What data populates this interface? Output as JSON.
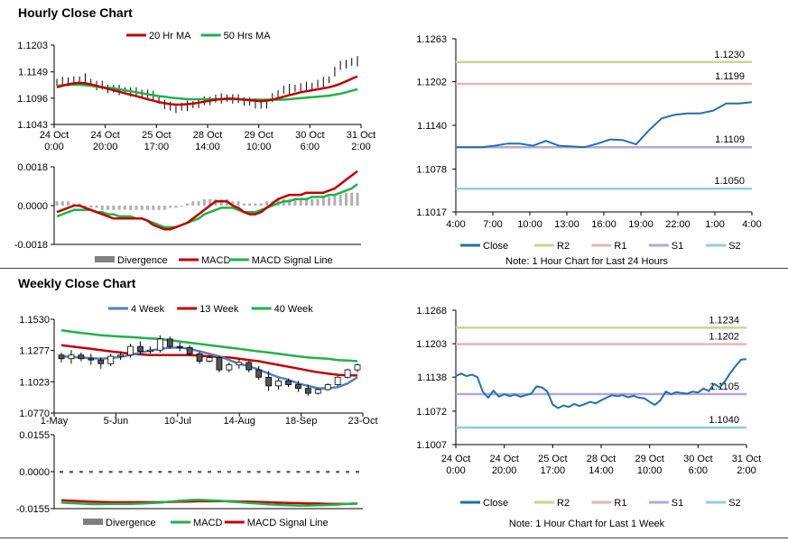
{
  "sections": {
    "hourly_title": "Hourly Close Chart",
    "weekly_title": "Weekly Close Chart"
  },
  "colors": {
    "ma20": "#c00000",
    "ma50": "#22b14c",
    "divergence": "#808080",
    "macd_red": "#c00000",
    "signal_green": "#22b14c",
    "close": "#1f6fb2",
    "r2": "#c3d69b",
    "r1": "#e6b4b4",
    "s1": "#b4a7d6",
    "s2": "#92cddc",
    "week4": "#4f81bd",
    "week13": "#c00000",
    "week40": "#22b14c"
  },
  "chart_data": [
    {
      "id": "hourly_price",
      "type": "line",
      "title": "Hourly Close Chart",
      "legend": [
        "20 Hr MA",
        "50 Hrs MA"
      ],
      "yticks": [
        "1.1203",
        "1.1149",
        "1.1096",
        "1.1043"
      ],
      "ylim": [
        1.1043,
        1.1203
      ],
      "xticks": [
        [
          "24 Oct",
          "0:00"
        ],
        [
          "24 Oct",
          "20:00"
        ],
        [
          "25 Oct",
          "17:00"
        ],
        [
          "28 Oct",
          "14:00"
        ],
        [
          "29 Oct",
          "10:00"
        ],
        [
          "30 Oct",
          "6:00"
        ],
        [
          "31 Oct",
          "2:00"
        ]
      ],
      "price": [
        1.1128,
        1.113,
        1.1127,
        1.1133,
        1.1131,
        1.1135,
        1.1128,
        1.1122,
        1.112,
        1.1116,
        1.1114,
        1.1112,
        1.1111,
        1.1109,
        1.1107,
        1.1106,
        1.1104,
        1.11,
        1.1092,
        1.1084,
        1.1078,
        1.1076,
        1.1078,
        1.108,
        1.1083,
        1.1086,
        1.1089,
        1.1092,
        1.1094,
        1.1095,
        1.1096,
        1.1095,
        1.1093,
        1.1091,
        1.1088,
        1.1085,
        1.1082,
        1.1085,
        1.1095,
        1.1105,
        1.1112,
        1.1114,
        1.1116,
        1.1117,
        1.1118,
        1.112,
        1.1124,
        1.1128,
        1.1133,
        1.115,
        1.116,
        1.1166,
        1.1168,
        1.117
      ],
      "ma20": [
        1.1118,
        1.1121,
        1.1124,
        1.1126,
        1.1127,
        1.1126,
        1.1124,
        1.1121,
        1.1118,
        1.1115,
        1.1112,
        1.1109,
        1.1106,
        1.1103,
        1.11,
        1.1097,
        1.1094,
        1.1091,
        1.1088,
        1.1086,
        1.1084,
        1.1083,
        1.1083,
        1.1084,
        1.1085,
        1.1087,
        1.1089,
        1.1091,
        1.1093,
        1.1094,
        1.1095,
        1.1095,
        1.1094,
        1.1093,
        1.1092,
        1.1091,
        1.109,
        1.1091,
        1.1093,
        1.1096,
        1.1099,
        1.1102,
        1.1105,
        1.1108,
        1.111,
        1.1112,
        1.1114,
        1.1116,
        1.1118,
        1.1121,
        1.1125,
        1.113,
        1.1135,
        1.114
      ],
      "ma50": [
        1.1121,
        1.1122,
        1.1123,
        1.1123,
        1.1123,
        1.1122,
        1.1121,
        1.1119,
        1.1118,
        1.1117,
        1.1116,
        1.1114,
        1.1112,
        1.111,
        1.1108,
        1.1106,
        1.1104,
        1.1102,
        1.11,
        1.1099,
        1.1097,
        1.1096,
        1.1095,
        1.1094,
        1.1094,
        1.1094,
        1.1094,
        1.1094,
        1.1094,
        1.1094,
        1.1094,
        1.1094,
        1.1094,
        1.1093,
        1.1093,
        1.1093,
        1.1093,
        1.1093,
        1.1093,
        1.1093,
        1.1093,
        1.1094,
        1.1095,
        1.1096,
        1.1097,
        1.1098,
        1.1099,
        1.11,
        1.1101,
        1.1103,
        1.1105,
        1.1108,
        1.1111,
        1.1114
      ]
    },
    {
      "id": "hourly_macd",
      "type": "line",
      "legend": [
        "Divergence",
        "MACD",
        "MACD Signal Line"
      ],
      "yticks": [
        "0.0018",
        "0.0000",
        "-0.0018"
      ],
      "ylim": [
        -0.0018,
        0.0018
      ],
      "divergence": [
        0.0002,
        0.0002,
        0.0002,
        0.0001,
        0.0001,
        0.0,
        -0.0001,
        -0.0001,
        -0.0002,
        -0.0002,
        -0.0002,
        -0.0002,
        -0.0002,
        -0.0002,
        -0.0002,
        -0.0002,
        -0.0002,
        -0.0002,
        -0.0002,
        -0.0002,
        -0.0001,
        -0.0001,
        0.0,
        0.0001,
        0.0002,
        0.0002,
        0.0003,
        0.0003,
        0.0003,
        0.0003,
        0.0003,
        0.0002,
        0.0002,
        0.0001,
        0.0001,
        0.0001,
        0.0001,
        0.0002,
        0.0002,
        0.0003,
        0.0003,
        0.0003,
        0.0003,
        0.0003,
        0.0003,
        0.0003,
        0.0003,
        0.0004,
        0.0004,
        0.0005,
        0.0005,
        0.0006,
        0.0006,
        0.0006
      ],
      "macd": [
        -0.0003,
        -0.0002,
        -0.0001,
        0.0,
        0.0,
        -0.0001,
        -0.0002,
        -0.0003,
        -0.0004,
        -0.0005,
        -0.0006,
        -0.0006,
        -0.0006,
        -0.0006,
        -0.0006,
        -0.0006,
        -0.0007,
        -0.0009,
        -0.001,
        -0.0011,
        -0.0011,
        -0.001,
        -0.0009,
        -0.0008,
        -0.0006,
        -0.0004,
        -0.0002,
        0.0,
        0.0002,
        0.0002,
        0.0002,
        0.0,
        -0.0001,
        -0.0003,
        -0.0004,
        -0.0004,
        -0.0003,
        -0.0001,
        0.0001,
        0.0003,
        0.0004,
        0.0005,
        0.0005,
        0.0005,
        0.0006,
        0.0006,
        0.0006,
        0.0006,
        0.0007,
        0.0008,
        0.001,
        0.0012,
        0.0014,
        0.0016
      ],
      "signal": [
        -0.0005,
        -0.0004,
        -0.0003,
        -0.0002,
        -0.0002,
        -0.0002,
        -0.0002,
        -0.0003,
        -0.0003,
        -0.0004,
        -0.0004,
        -0.0005,
        -0.0005,
        -0.0005,
        -0.0006,
        -0.0006,
        -0.0007,
        -0.0008,
        -0.0009,
        -0.001,
        -0.001,
        -0.001,
        -0.0009,
        -0.0008,
        -0.0007,
        -0.0006,
        -0.0004,
        -0.0003,
        -0.0002,
        -0.0001,
        -0.0001,
        -0.0001,
        -0.0002,
        -0.0003,
        -0.0003,
        -0.0003,
        -0.0002,
        -0.0001,
        0.0,
        0.0001,
        0.0002,
        0.0002,
        0.0003,
        0.0003,
        0.0003,
        0.0004,
        0.0004,
        0.0004,
        0.0005,
        0.0005,
        0.0006,
        0.0007,
        0.0008,
        0.001
      ]
    },
    {
      "id": "hourly_levels",
      "type": "line",
      "yticks": [
        "1.1263",
        "1.1202",
        "1.1140",
        "1.1078",
        "1.1017"
      ],
      "ylim": [
        1.1017,
        1.1263
      ],
      "xticks": [
        "4:00",
        "7:00",
        "10:00",
        "13:00",
        "16:00",
        "19:00",
        "22:00",
        "1:00",
        "4:00"
      ],
      "close": [
        1.1109,
        1.1109,
        1.1109,
        1.1111,
        1.1114,
        1.1114,
        1.1111,
        1.1118,
        1.1111,
        1.111,
        1.1109,
        1.1114,
        1.112,
        1.1119,
        1.1113,
        1.1133,
        1.115,
        1.1155,
        1.1157,
        1.1157,
        1.1161,
        1.1171,
        1.1171,
        1.1173
      ],
      "levels": {
        "R2": 1.123,
        "R1": 1.1199,
        "S1": 1.1109,
        "S2": 1.105
      },
      "level_labels": {
        "R2": "1.1230",
        "R1": "1.1199",
        "S1": "1.1109",
        "S2": "1.1050"
      },
      "legend": [
        "Close",
        "R2",
        "R1",
        "S1",
        "S2"
      ],
      "note": "Note: 1 Hour Chart for Last 24 Hours"
    },
    {
      "id": "weekly_price",
      "type": "line",
      "title": "Weekly Close Chart",
      "legend": [
        "4 Week",
        "13 Week",
        "40 Week"
      ],
      "yticks": [
        "1.1530",
        "1.1277",
        "1.1023",
        "1.0770"
      ],
      "ylim": [
        1.077,
        1.153
      ],
      "xticks": [
        "1-May",
        "5-Jun",
        "10-Jul",
        "14-Aug",
        "18-Sep",
        "23-Oct"
      ],
      "candles": [
        [
          1.124,
          1.126,
          1.118,
          1.121
        ],
        [
          1.121,
          1.128,
          1.117,
          1.124
        ],
        [
          1.124,
          1.126,
          1.119,
          1.121
        ],
        [
          1.121,
          1.125,
          1.116,
          1.12
        ],
        [
          1.12,
          1.122,
          1.113,
          1.117
        ],
        [
          1.117,
          1.125,
          1.115,
          1.123
        ],
        [
          1.123,
          1.127,
          1.12,
          1.124
        ],
        [
          1.124,
          1.133,
          1.122,
          1.131
        ],
        [
          1.131,
          1.135,
          1.124,
          1.127
        ],
        [
          1.127,
          1.131,
          1.125,
          1.128
        ],
        [
          1.128,
          1.14,
          1.126,
          1.137
        ],
        [
          1.137,
          1.139,
          1.129,
          1.131
        ],
        [
          1.131,
          1.134,
          1.127,
          1.13
        ],
        [
          1.13,
          1.132,
          1.123,
          1.125
        ],
        [
          1.125,
          1.127,
          1.117,
          1.119
        ],
        [
          1.119,
          1.124,
          1.118,
          1.122
        ],
        [
          1.122,
          1.123,
          1.11,
          1.112
        ],
        [
          1.112,
          1.118,
          1.11,
          1.116
        ],
        [
          1.116,
          1.121,
          1.113,
          1.118
        ],
        [
          1.118,
          1.119,
          1.11,
          1.112
        ],
        [
          1.112,
          1.115,
          1.104,
          1.106
        ],
        [
          1.106,
          1.111,
          1.095,
          1.099
        ],
        [
          1.099,
          1.105,
          1.096,
          1.103
        ],
        [
          1.103,
          1.105,
          1.098,
          1.1
        ],
        [
          1.1,
          1.103,
          1.094,
          1.097
        ],
        [
          1.097,
          1.1,
          1.091,
          1.093
        ],
        [
          1.093,
          1.097,
          1.092,
          1.096
        ],
        [
          1.096,
          1.101,
          1.095,
          1.1
        ],
        [
          1.1,
          1.107,
          1.099,
          1.106
        ],
        [
          1.106,
          1.113,
          1.105,
          1.112
        ],
        [
          1.112,
          1.117,
          1.11,
          1.116
        ]
      ],
      "ma4": [
        1.123,
        1.1225,
        1.122,
        1.1215,
        1.121,
        1.1215,
        1.1225,
        1.124,
        1.126,
        1.1275,
        1.129,
        1.13,
        1.13,
        1.129,
        1.127,
        1.125,
        1.123,
        1.12,
        1.117,
        1.115,
        1.112,
        1.109,
        1.106,
        1.104,
        1.101,
        1.099,
        1.097,
        1.097,
        1.098,
        1.101,
        1.106
      ],
      "ma13": [
        1.132,
        1.131,
        1.13,
        1.129,
        1.128,
        1.127,
        1.126,
        1.125,
        1.1245,
        1.124,
        1.124,
        1.124,
        1.124,
        1.124,
        1.1235,
        1.123,
        1.1225,
        1.122,
        1.121,
        1.12,
        1.119,
        1.1175,
        1.116,
        1.1145,
        1.113,
        1.1115,
        1.11,
        1.109,
        1.108,
        1.1075,
        1.1075
      ],
      "ma40": [
        1.144,
        1.143,
        1.142,
        1.141,
        1.14,
        1.1395,
        1.139,
        1.1385,
        1.138,
        1.1375,
        1.137,
        1.136,
        1.135,
        1.134,
        1.133,
        1.132,
        1.131,
        1.13,
        1.129,
        1.128,
        1.127,
        1.126,
        1.125,
        1.124,
        1.123,
        1.122,
        1.1215,
        1.121,
        1.12,
        1.1195,
        1.119
      ]
    },
    {
      "id": "weekly_macd",
      "type": "line",
      "legend": [
        "Divergence",
        "MACD",
        "MACD Signal Line"
      ],
      "yticks": [
        "0.0155",
        "0.0000",
        "-0.0155"
      ],
      "ylim": [
        -0.0155,
        0.0155
      ],
      "divergence": [
        -0.001,
        -0.001,
        -0.0009,
        -0.0009,
        -0.0008,
        -0.0008,
        -0.0007,
        -0.0006,
        -0.0005,
        -0.0003,
        -0.0002,
        -0.0001,
        0.0,
        0.0,
        0.0,
        0.0,
        0.0,
        -0.0001,
        -0.0001,
        -0.0002,
        -0.0003,
        -0.0003,
        -0.0004,
        -0.0004,
        -0.0004,
        -0.0003,
        -0.0002,
        -0.0002,
        -0.0001,
        -0.0001,
        0.0
      ],
      "macd": [
        -0.013,
        -0.0132,
        -0.0134,
        -0.0136,
        -0.0136,
        -0.0135,
        -0.0135,
        -0.0135,
        -0.0134,
        -0.0132,
        -0.013,
        -0.0126,
        -0.0122,
        -0.0119,
        -0.0118,
        -0.012,
        -0.0122,
        -0.0125,
        -0.0128,
        -0.0131,
        -0.0134,
        -0.0137,
        -0.0139,
        -0.0141,
        -0.0142,
        -0.0142,
        -0.0141,
        -0.014,
        -0.0138,
        -0.0135,
        -0.0133
      ],
      "signal": [
        -0.012,
        -0.0122,
        -0.0124,
        -0.0126,
        -0.0127,
        -0.0128,
        -0.0128,
        -0.0128,
        -0.0128,
        -0.0128,
        -0.0128,
        -0.0127,
        -0.0126,
        -0.0125,
        -0.0124,
        -0.0124,
        -0.0124,
        -0.0124,
        -0.0125,
        -0.0126,
        -0.0127,
        -0.0128,
        -0.013,
        -0.0131,
        -0.0132,
        -0.0133,
        -0.0134,
        -0.0135,
        -0.0135,
        -0.0135,
        -0.0134
      ]
    },
    {
      "id": "weekly_levels",
      "type": "line",
      "yticks": [
        "1.1268",
        "1.1203",
        "1.1138",
        "1.1072",
        "1.1007"
      ],
      "ylim": [
        1.1007,
        1.1268
      ],
      "xticks": [
        [
          "24 Oct",
          "0:00"
        ],
        [
          "24 Oct",
          "20:00"
        ],
        [
          "25 Oct",
          "17:00"
        ],
        [
          "28 Oct",
          "14:00"
        ],
        [
          "29 Oct",
          "10:00"
        ],
        [
          "30 Oct",
          "6:00"
        ],
        [
          "31 Oct",
          "2:00"
        ]
      ],
      "close": [
        1.114,
        1.1145,
        1.114,
        1.1143,
        1.1138,
        1.111,
        1.1098,
        1.1112,
        1.11,
        1.1105,
        1.1101,
        1.1104,
        1.11,
        1.1103,
        1.1106,
        1.112,
        1.1118,
        1.111,
        1.1085,
        1.1078,
        1.1083,
        1.108,
        1.1086,
        1.1082,
        1.1086,
        1.109,
        1.1087,
        1.1093,
        1.1098,
        1.1103,
        1.1101,
        1.1103,
        1.1099,
        1.1102,
        1.1098,
        1.1097,
        1.109,
        1.1084,
        1.1093,
        1.111,
        1.1105,
        1.1109,
        1.1107,
        1.1106,
        1.111,
        1.1108,
        1.1116,
        1.1111,
        1.1125,
        1.1118,
        1.113,
        1.1146,
        1.116,
        1.1172,
        1.1173
      ],
      "levels": {
        "R2": 1.1234,
        "R1": 1.1202,
        "S1": 1.1105,
        "S2": 1.104
      },
      "level_labels": {
        "R2": "1.1234",
        "R1": "1.1202",
        "S1": "1.1105",
        "S2": "1.1040"
      },
      "legend": [
        "Close",
        "R2",
        "R1",
        "S1",
        "S2"
      ],
      "note": "Note: 1 Hour Chart for Last 1 Week"
    }
  ]
}
